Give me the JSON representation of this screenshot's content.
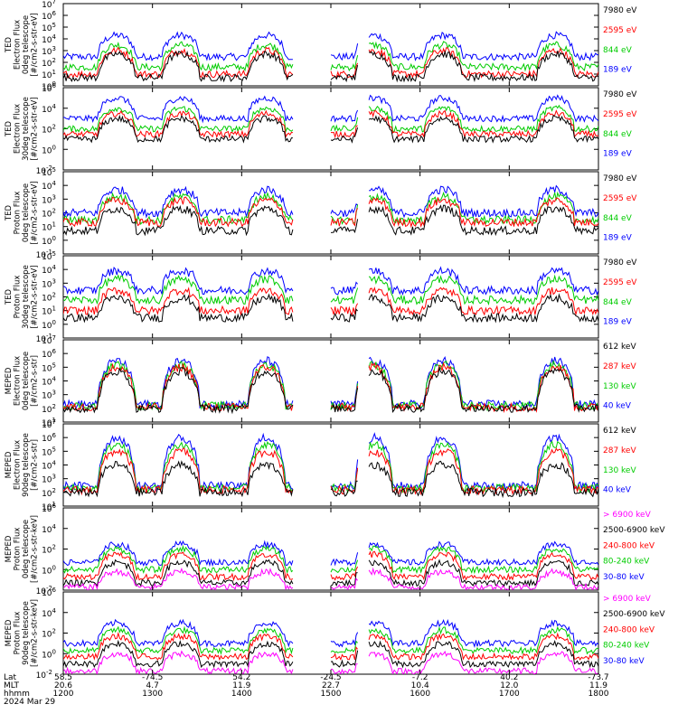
{
  "chart_data": {
    "type": "line",
    "x_axis": {
      "rows": [
        {
          "label": "Lat",
          "ticks": [
            "58.5",
            "-74.5",
            "54.2",
            "-24.5",
            "-7.2",
            "40.2",
            "-73.7"
          ]
        },
        {
          "label": "MLT",
          "ticks": [
            "20.6",
            "4.7",
            "11.9",
            "22.7",
            "10.4",
            "12.0",
            "11.9"
          ]
        },
        {
          "label": "hhmm",
          "ticks": [
            "1200",
            "1300",
            "1400",
            "1500",
            "1600",
            "1700",
            "1800"
          ]
        }
      ],
      "date": "2024 Mar 29",
      "xlim_hhmm": [
        "1200",
        "1800"
      ]
    },
    "panels": [
      {
        "id": "ted-electron-0deg",
        "ylabel": [
          "TED",
          "Electron Flux",
          "0deg telescope",
          "[#/cm2-s-str-eV]"
        ],
        "ylim": [
          1,
          10000000
        ],
        "y_ticks": [
          {
            "base": "10",
            "exp": "0"
          },
          {
            "base": "10",
            "exp": "1"
          },
          {
            "base": "10",
            "exp": "2"
          },
          {
            "base": "10",
            "exp": "3"
          },
          {
            "base": "10",
            "exp": "4"
          },
          {
            "base": "10",
            "exp": "5"
          },
          {
            "base": "10",
            "exp": "6"
          },
          {
            "base": "10",
            "exp": "7"
          }
        ],
        "legend": [
          {
            "label": "7980 eV",
            "color": "#000000"
          },
          {
            "label": "2595 eV",
            "color": "#ff0000"
          },
          {
            "label": "844 eV",
            "color": "#00cc00"
          },
          {
            "label": "189 eV",
            "color": "#0000ff"
          }
        ],
        "series": [
          {
            "name": "189 eV",
            "baseline": 300,
            "peak": 20000,
            "color": "#0000ff"
          },
          {
            "name": "844 eV",
            "baseline": 40,
            "peak": 3000,
            "color": "#00cc00"
          },
          {
            "name": "2595 eV",
            "baseline": 10,
            "peak": 1000,
            "color": "#ff0000"
          },
          {
            "name": "7980 eV",
            "baseline": 5,
            "peak": 500,
            "color": "#000000"
          }
        ]
      },
      {
        "id": "ted-electron-30deg",
        "ylabel": [
          "TED",
          "Electron Flux",
          "30deg telescope",
          "[#/cm2-s-str-eV]"
        ],
        "ylim": [
          0.01,
          1000000
        ],
        "y_ticks": [
          {
            "base": "10",
            "exp": "-2"
          },
          {
            "base": "10",
            "exp": "0"
          },
          {
            "base": "10",
            "exp": "2"
          },
          {
            "base": "10",
            "exp": "4"
          },
          {
            "base": "10",
            "exp": "6"
          }
        ],
        "legend": [
          {
            "label": "7980 eV",
            "color": "#000000"
          },
          {
            "label": "2595 eV",
            "color": "#ff0000"
          },
          {
            "label": "844 eV",
            "color": "#00cc00"
          },
          {
            "label": "189 eV",
            "color": "#0000ff"
          }
        ],
        "series": [
          {
            "name": "189 eV",
            "baseline": 1000,
            "peak": 100000,
            "color": "#0000ff"
          },
          {
            "name": "844 eV",
            "baseline": 100,
            "peak": 10000,
            "color": "#00cc00"
          },
          {
            "name": "2595 eV",
            "baseline": 30,
            "peak": 3000,
            "color": "#ff0000"
          },
          {
            "name": "7980 eV",
            "baseline": 10,
            "peak": 1000,
            "color": "#000000"
          }
        ]
      },
      {
        "id": "ted-proton-0deg",
        "ylabel": [
          "TED",
          "Proton Flux",
          "0deg telescope",
          "[#/cm2-s-str-eV]"
        ],
        "ylim": [
          0.1,
          100000
        ],
        "y_ticks": [
          {
            "base": "10",
            "exp": "-1"
          },
          {
            "base": "10",
            "exp": "0"
          },
          {
            "base": "10",
            "exp": "1"
          },
          {
            "base": "10",
            "exp": "2"
          },
          {
            "base": "10",
            "exp": "3"
          },
          {
            "base": "10",
            "exp": "4"
          },
          {
            "base": "10",
            "exp": "5"
          }
        ],
        "legend": [
          {
            "label": "7980 eV",
            "color": "#000000"
          },
          {
            "label": "2595 eV",
            "color": "#ff0000"
          },
          {
            "label": "844 eV",
            "color": "#00cc00"
          },
          {
            "label": "189 eV",
            "color": "#0000ff"
          }
        ],
        "series": [
          {
            "name": "189 eV",
            "baseline": 100,
            "peak": 5000,
            "color": "#0000ff"
          },
          {
            "name": "844 eV",
            "baseline": 30,
            "peak": 1500,
            "color": "#00cc00"
          },
          {
            "name": "2595 eV",
            "baseline": 20,
            "peak": 800,
            "color": "#ff0000"
          },
          {
            "name": "7980 eV",
            "baseline": 5,
            "peak": 200,
            "color": "#000000"
          }
        ]
      },
      {
        "id": "ted-proton-30deg",
        "ylabel": [
          "TED",
          "Proton Flux",
          "30deg telescope",
          "[#/cm2-s-str-eV]"
        ],
        "ylim": [
          0.1,
          100000
        ],
        "y_ticks": [
          {
            "base": "10",
            "exp": "-1"
          },
          {
            "base": "10",
            "exp": "0"
          },
          {
            "base": "10",
            "exp": "1"
          },
          {
            "base": "10",
            "exp": "2"
          },
          {
            "base": "10",
            "exp": "3"
          },
          {
            "base": "10",
            "exp": "4"
          },
          {
            "base": "10",
            "exp": "5"
          }
        ],
        "legend": [
          {
            "label": "7980 eV",
            "color": "#000000"
          },
          {
            "label": "2595 eV",
            "color": "#ff0000"
          },
          {
            "label": "844 eV",
            "color": "#00cc00"
          },
          {
            "label": "189 eV",
            "color": "#0000ff"
          }
        ],
        "series": [
          {
            "name": "189 eV",
            "baseline": 300,
            "peak": 8000,
            "color": "#0000ff"
          },
          {
            "name": "844 eV",
            "baseline": 60,
            "peak": 2000,
            "color": "#00cc00"
          },
          {
            "name": "2595 eV",
            "baseline": 10,
            "peak": 300,
            "color": "#ff0000"
          },
          {
            "name": "7980 eV",
            "baseline": 3,
            "peak": 80,
            "color": "#000000"
          }
        ]
      },
      {
        "id": "meped-electron-0deg",
        "ylabel": [
          "MEPED",
          "Electron Flux",
          "0deg telescope",
          "[#/cm2-s-str]"
        ],
        "ylim": [
          10,
          10000000
        ],
        "y_ticks": [
          {
            "base": "10",
            "exp": "1"
          },
          {
            "base": "10",
            "exp": "2"
          },
          {
            "base": "10",
            "exp": "3"
          },
          {
            "base": "10",
            "exp": "4"
          },
          {
            "base": "10",
            "exp": "5"
          },
          {
            "base": "10",
            "exp": "6"
          },
          {
            "base": "10",
            "exp": "7"
          }
        ],
        "legend": [
          {
            "label": "612 keV",
            "color": "#000000"
          },
          {
            "label": "287 keV",
            "color": "#ff0000"
          },
          {
            "label": "130 keV",
            "color": "#00cc00"
          },
          {
            "label": "40 keV",
            "color": "#0000ff"
          }
        ],
        "series": [
          {
            "name": "40 keV",
            "baseline": 200,
            "peak": 300000,
            "color": "#0000ff"
          },
          {
            "name": "130 keV",
            "baseline": 150,
            "peak": 150000,
            "color": "#00cc00"
          },
          {
            "name": "287 keV",
            "baseline": 120,
            "peak": 100000,
            "color": "#ff0000"
          },
          {
            "name": "612 keV",
            "baseline": 100,
            "peak": 50000,
            "color": "#000000"
          }
        ]
      },
      {
        "id": "meped-electron-90deg",
        "ylabel": [
          "MEPED",
          "Electron Flux",
          "90deg telescope",
          "[#/cm2-s-str]"
        ],
        "ylim": [
          10,
          10000000
        ],
        "y_ticks": [
          {
            "base": "10",
            "exp": "1"
          },
          {
            "base": "10",
            "exp": "2"
          },
          {
            "base": "10",
            "exp": "3"
          },
          {
            "base": "10",
            "exp": "4"
          },
          {
            "base": "10",
            "exp": "5"
          },
          {
            "base": "10",
            "exp": "6"
          },
          {
            "base": "10",
            "exp": "7"
          }
        ],
        "legend": [
          {
            "label": "612 keV",
            "color": "#000000"
          },
          {
            "label": "287 keV",
            "color": "#ff0000"
          },
          {
            "label": "130 keV",
            "color": "#00cc00"
          },
          {
            "label": "40 keV",
            "color": "#0000ff"
          }
        ],
        "series": [
          {
            "name": "40 keV",
            "baseline": 300,
            "peak": 1000000,
            "color": "#0000ff"
          },
          {
            "name": "130 keV",
            "baseline": 200,
            "peak": 300000,
            "color": "#00cc00"
          },
          {
            "name": "287 keV",
            "baseline": 150,
            "peak": 100000,
            "color": "#ff0000"
          },
          {
            "name": "612 keV",
            "baseline": 100,
            "peak": 10000,
            "color": "#000000"
          }
        ]
      },
      {
        "id": "meped-proton-0deg",
        "ylabel": [
          "MEPED",
          "Proton Flux",
          "0deg telescope",
          "[#/cm2-s-str-keV]"
        ],
        "ylim": [
          0.01,
          1000000
        ],
        "y_ticks": [
          {
            "base": "10",
            "exp": "-2"
          },
          {
            "base": "10",
            "exp": "0"
          },
          {
            "base": "10",
            "exp": "2"
          },
          {
            "base": "10",
            "exp": "4"
          },
          {
            "base": "10",
            "exp": "6"
          }
        ],
        "legend": [
          {
            "label": "> 6900 keV",
            "color": "#ff00ff"
          },
          {
            "label": "2500-6900 keV",
            "color": "#000000"
          },
          {
            "label": "240-800 keV",
            "color": "#ff0000"
          },
          {
            "label": "80-240 keV",
            "color": "#00cc00"
          },
          {
            "label": "30-80 keV",
            "color": "#0000ff"
          }
        ],
        "series": [
          {
            "name": "30-80 keV",
            "baseline": 5,
            "peak": 300,
            "color": "#0000ff"
          },
          {
            "name": "80-240 keV",
            "baseline": 1,
            "peak": 100,
            "color": "#00cc00"
          },
          {
            "name": "240-800 keV",
            "baseline": 0.2,
            "peak": 30,
            "color": "#ff0000"
          },
          {
            "name": "2500-6900 keV",
            "baseline": 0.05,
            "peak": 5,
            "color": "#000000"
          },
          {
            "name": "> 6900 keV",
            "baseline": 0.02,
            "peak": 0.6,
            "color": "#ff00ff"
          }
        ]
      },
      {
        "id": "meped-proton-90deg",
        "ylabel": [
          "MEPED",
          "Proton Flux",
          "90deg telescope",
          "[#/cm2-s-str-keV]"
        ],
        "ylim": [
          0.01,
          1000000
        ],
        "y_ticks": [
          {
            "base": "10",
            "exp": "-2"
          },
          {
            "base": "10",
            "exp": "0"
          },
          {
            "base": "10",
            "exp": "2"
          },
          {
            "base": "10",
            "exp": "4"
          },
          {
            "base": "10",
            "exp": "6"
          }
        ],
        "legend": [
          {
            "label": "> 6900 keV",
            "color": "#ff00ff"
          },
          {
            "label": "2500-6900 keV",
            "color": "#000000"
          },
          {
            "label": "240-800 keV",
            "color": "#ff0000"
          },
          {
            "label": "80-240 keV",
            "color": "#00cc00"
          },
          {
            "label": "30-80 keV",
            "color": "#0000ff"
          }
        ],
        "series": [
          {
            "name": "30-80 keV",
            "baseline": 10,
            "peak": 1000,
            "color": "#0000ff"
          },
          {
            "name": "80-240 keV",
            "baseline": 2,
            "peak": 200,
            "color": "#00cc00"
          },
          {
            "name": "240-800 keV",
            "baseline": 0.5,
            "peak": 50,
            "color": "#ff0000"
          },
          {
            "name": "2500-6900 keV",
            "baseline": 0.1,
            "peak": 10,
            "color": "#000000"
          },
          {
            "name": "> 6900 keV",
            "baseline": 0.02,
            "peak": 1,
            "color": "#ff00ff"
          }
        ]
      }
    ]
  }
}
